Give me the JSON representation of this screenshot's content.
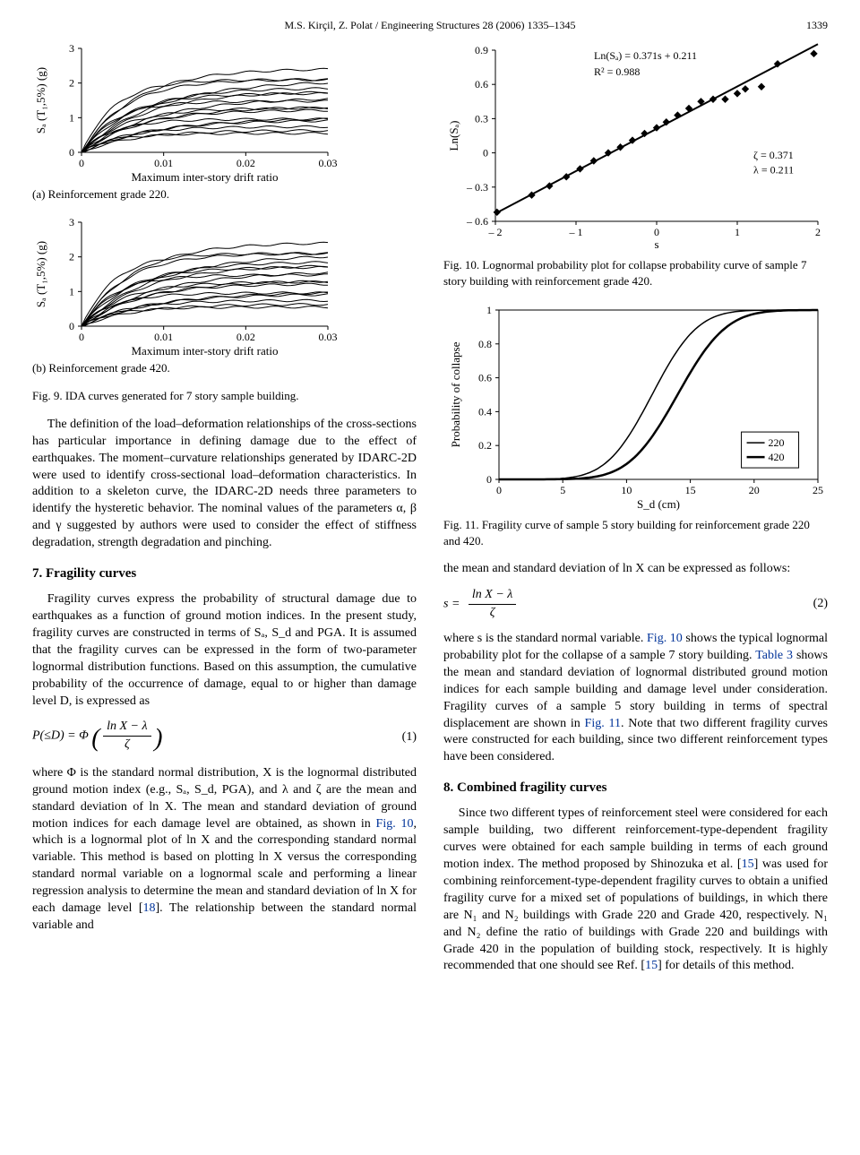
{
  "header": {
    "running": "M.S. Kirçil, Z. Polat / Engineering Structures 28 (2006) 1335–1345",
    "page": "1339"
  },
  "fig9a": {
    "type": "line-multi",
    "title": "(a) Reinforcement grade 220.",
    "xlabel": "Maximum inter-story drift ratio",
    "ylabel": "Sₐ (T₁,5%) (g)",
    "xlim": [
      0,
      0.03
    ],
    "xticks": [
      0,
      0.01,
      0.02,
      0.03
    ],
    "ylim": [
      0,
      3
    ],
    "yticks": [
      0,
      1,
      2,
      3
    ],
    "line_color": "#000000",
    "line_width": 1,
    "axis_color": "#000000",
    "tick_fontsize": 12,
    "label_fontsize": 13,
    "n_curves": 18
  },
  "fig9b": {
    "type": "line-multi",
    "title": "(b) Reinforcement grade 420.",
    "xlabel": "Maximum inter-story drift ratio",
    "ylabel": "Sₐ (T₁,5%) (g)",
    "xlim": [
      0,
      0.03
    ],
    "xticks": [
      0,
      0.01,
      0.02,
      0.03
    ],
    "ylim": [
      0,
      3
    ],
    "yticks": [
      0,
      1,
      2,
      3
    ],
    "line_color": "#000000",
    "line_width": 1,
    "axis_color": "#000000",
    "tick_fontsize": 12,
    "label_fontsize": 13,
    "n_curves": 18
  },
  "fig9_caption": "Fig. 9.  IDA curves generated for 7 story sample building.",
  "fig10": {
    "type": "scatter-fit",
    "xlabel": "s",
    "ylabel": "Ln(Sₐ)",
    "xlim": [
      -2,
      2
    ],
    "xticks": [
      -2,
      -1,
      0,
      1,
      2
    ],
    "ylim": [
      -0.6,
      0.9
    ],
    "yticks": [
      -0.6,
      -0.3,
      0,
      0.3,
      0.6,
      0.9
    ],
    "fit_line": {
      "slope": 0.371,
      "intercept": 0.211,
      "color": "#000000",
      "width": 2
    },
    "marker": {
      "shape": "diamond",
      "size": 7,
      "color": "#000000"
    },
    "points": [
      [
        -1.98,
        -0.52
      ],
      [
        -1.55,
        -0.37
      ],
      [
        -1.33,
        -0.29
      ],
      [
        -1.12,
        -0.21
      ],
      [
        -0.95,
        -0.14
      ],
      [
        -0.78,
        -0.07
      ],
      [
        -0.6,
        0.0
      ],
      [
        -0.45,
        0.05
      ],
      [
        -0.3,
        0.11
      ],
      [
        -0.15,
        0.17
      ],
      [
        0.0,
        0.22
      ],
      [
        0.12,
        0.27
      ],
      [
        0.26,
        0.33
      ],
      [
        0.4,
        0.39
      ],
      [
        0.55,
        0.45
      ],
      [
        0.7,
        0.47
      ],
      [
        0.85,
        0.47
      ],
      [
        1.0,
        0.52
      ],
      [
        1.1,
        0.56
      ],
      [
        1.3,
        0.58
      ],
      [
        1.5,
        0.78
      ],
      [
        1.95,
        0.87
      ]
    ],
    "annot1": "Ln(Sₐ) = 0.371s + 0.211",
    "annot2": "R² = 0.988",
    "annot3": "ζ = 0.371",
    "annot4": "λ = 0.211",
    "axis_color": "#000000",
    "tick_fontsize": 12,
    "label_fontsize": 13
  },
  "fig10_caption": "Fig. 10.  Lognormal probability plot for collapse probability curve of sample 7 story building with reinforcement grade 420.",
  "fig11": {
    "type": "line",
    "xlabel": "S_d (cm)",
    "ylabel": "Probability of collapse",
    "xlim": [
      0,
      25
    ],
    "xticks": [
      0,
      5,
      10,
      15,
      20,
      25
    ],
    "ylim": [
      0,
      1
    ],
    "yticks": [
      0,
      0.2,
      0.4,
      0.6,
      0.8,
      1
    ],
    "line_color": "#000000",
    "axis_color": "#000000",
    "tick_fontsize": 12,
    "label_fontsize": 13,
    "series": [
      {
        "name": "220",
        "width": 1.5,
        "mu": 12.0,
        "sigma": 2.8
      },
      {
        "name": "420",
        "width": 2.5,
        "mu": 14.0,
        "sigma": 3.0
      }
    ],
    "legend_pos": "right",
    "legend_labels": [
      "220",
      "420"
    ]
  },
  "fig11_caption": "Fig. 11.  Fragility curve of sample 5 story building for reinforcement grade 220 and 420.",
  "left_paragraph1": "The definition of the load–deformation relationships of the cross-sections has particular importance in defining damage due to the effect of earthquakes. The moment–curvature relationships generated by IDARC-2D were used to identify cross-sectional load–deformation characteristics. In addition to a skeleton curve, the IDARC-2D needs three parameters to identify the hysteretic behavior. The nominal values of the parameters α, β and γ suggested by authors were used to consider the effect of stiffness degradation, strength degradation and pinching.",
  "section7_title": "7. Fragility curves",
  "section7_p1": "Fragility curves express the probability of structural damage due to earthquakes as a function of ground motion indices. In the present study, fragility curves are constructed in terms of Sₐ, S_d and PGA. It is assumed that the fragility curves can be expressed in the form of two-parameter lognormal distribution functions. Based on this assumption, the cumulative probability of the occurrence of damage, equal to or higher than damage level D, is expressed as",
  "eq1_lhs": "P(≤D) = Φ",
  "eq1_frac_top": "ln X − λ",
  "eq1_frac_bot": "ζ",
  "eq1_num": "(1)",
  "section7_p2a": "where Φ is the standard normal distribution, X is the lognormal distributed ground motion index (e.g., Sₐ, S_d, PGA), and λ and ζ are the mean and standard deviation of ln X. The mean and standard deviation of ground motion indices for each damage level are obtained, as shown in ",
  "section7_p2_link1": "Fig. 10",
  "section7_p2b": ", which is a lognormal plot of ln X and the corresponding standard normal variable. This method is based on plotting ln X versus the corresponding standard normal variable on a lognormal scale and performing a linear regression analysis to determine the mean and standard deviation of ln X for each damage level [",
  "section7_p2_link2": "18",
  "section7_p2c": "]. The relationship between the standard normal variable and",
  "right_p1": "the mean and standard deviation of ln X can be expressed as follows:",
  "eq2_lhs": "s =",
  "eq2_frac_top": "ln X − λ",
  "eq2_frac_bot": "ζ",
  "eq2_num": "(2)",
  "right_p2a": "where s is the standard normal variable. ",
  "right_p2_link1": "Fig. 10",
  "right_p2b": " shows the typical lognormal probability plot for the collapse of a sample 7 story building. ",
  "right_p2_link2": "Table 3",
  "right_p2c": " shows the mean and standard deviation of lognormal distributed ground motion indices for each sample building and damage level under consideration. Fragility curves of a sample 5 story building in terms of spectral displacement are shown in ",
  "right_p2_link3": "Fig. 11",
  "right_p2d": ". Note that two different fragility curves were constructed for each building, since two different reinforcement types have been considered.",
  "section8_title": "8. Combined fragility curves",
  "section8_p1a": "Since two different types of reinforcement steel were considered for each sample building, two different reinforcement-type-dependent fragility curves were obtained for each sample building in terms of each ground motion index. The method proposed by Shinozuka et al. [",
  "section8_p1_link1": "15",
  "section8_p1b": "] was used for combining reinforcement-type-dependent fragility curves to obtain a unified fragility curve for a mixed set of populations of buildings, in which there are N₁ and N₂ buildings with Grade 220 and Grade 420, respectively. N₁ and N₂ define the ratio of buildings with Grade 220 and buildings with Grade 420 in the population of building stock, respectively. It is highly recommended that one should see Ref. [",
  "section8_p1_link2": "15",
  "section8_p1c": "] for details of this method."
}
